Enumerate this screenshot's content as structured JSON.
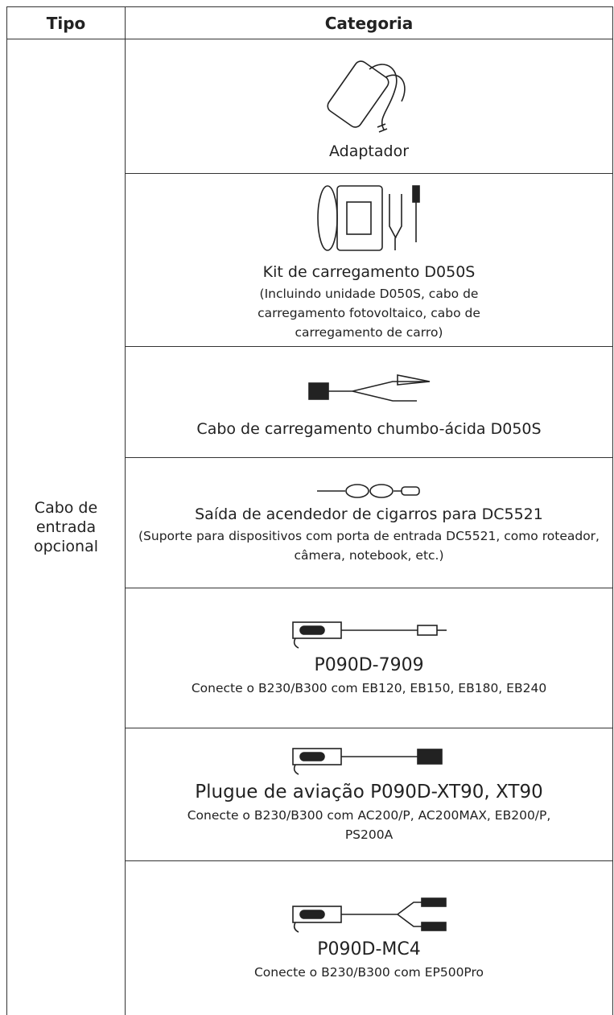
{
  "table": {
    "header": [
      "Tipo",
      "Categoria"
    ],
    "type_label": "Cabo de entrada opcional",
    "rows": [
      {
        "title": "Adaptador"
      },
      {
        "title": "Kit de carregamento D050S",
        "note": "(Incluindo unidade D050S, cabo de carregamento fotovoltaico, cabo de carregamento de carro)"
      },
      {
        "title": "Cabo de carregamento chumbo-ácida D050S"
      },
      {
        "title": "Saída de acendedor de cigarros para DC5521",
        "note": "(Suporte para dispositivos com porta de entrada DC5521, como roteador, câmera, notebook, etc.)"
      },
      {
        "title": "P090D-7909",
        "note": "Conecte o B230/B300 com EB120, EB150, EB180, EB240"
      },
      {
        "title": "Plugue de aviação P090D-XT90, XT90",
        "note": "Conecte o B230/B300 com AC200/P, AC200MAX, EB200/P, PS200A"
      },
      {
        "title": "P090D-MC4",
        "note": "Conecte o B230/B300 com EP500Pro"
      }
    ]
  }
}
